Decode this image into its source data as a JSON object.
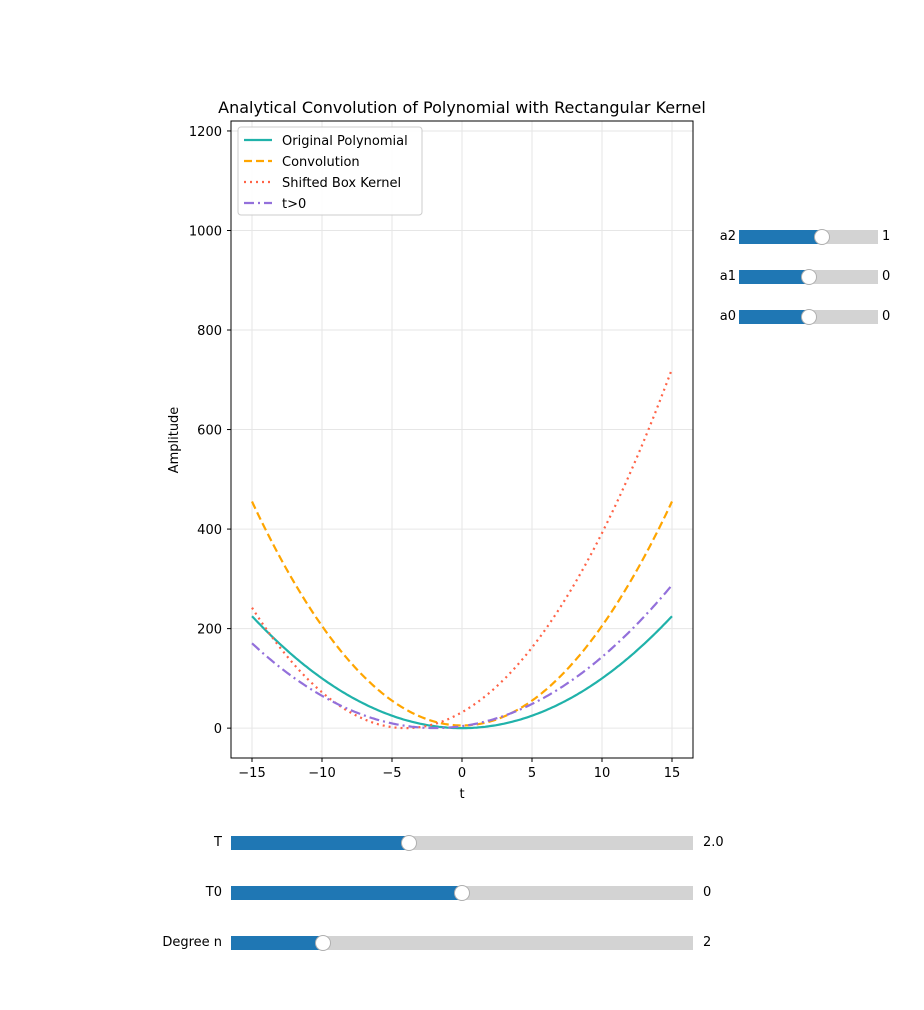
{
  "chart_data": {
    "type": "line",
    "title": "Analytical Convolution of Polynomial with Rectangular Kernel",
    "xlabel": "t",
    "ylabel": "Amplitude",
    "xlim": [
      -16.5,
      16.5
    ],
    "ylim": [
      -60,
      1220
    ],
    "xticks": [
      -15,
      -10,
      -5,
      0,
      5,
      10,
      15
    ],
    "yticks": [
      0,
      200,
      400,
      600,
      800,
      1000,
      1200
    ],
    "grid": true,
    "legend_position": "upper-left",
    "x_range": [
      -15,
      15
    ],
    "series": [
      {
        "name": "Original Polynomial",
        "color": "#20b2aa",
        "style": "solid",
        "a": 1.0,
        "b": 0.0,
        "c": 0.0
      },
      {
        "name": "Convolution",
        "color": "#ffa500",
        "style": "dashed",
        "a": 2.0,
        "b": 0.0,
        "c": 5.33
      },
      {
        "name": "Shifted Box Kernel",
        "color": "#ff6347",
        "style": "dotted",
        "a": 2.0,
        "b": 16.0,
        "c": 32.0
      },
      {
        "name": "t>0",
        "color": "#9370db",
        "style": "dashdot",
        "a": 1.0,
        "b": 3.9,
        "c": 4.0
      }
    ]
  },
  "sliders_right": [
    {
      "label": "a2",
      "value": "1",
      "fraction": 0.6
    },
    {
      "label": "a1",
      "value": "0",
      "fraction": 0.5
    },
    {
      "label": "a0",
      "value": "0",
      "fraction": 0.5
    }
  ],
  "sliders_bottom": [
    {
      "label": "T",
      "value": "2.0",
      "fraction": 0.385
    },
    {
      "label": "T0",
      "value": "0",
      "fraction": 0.5
    },
    {
      "label": "Degree n",
      "value": "2",
      "fraction": 0.2
    }
  ]
}
